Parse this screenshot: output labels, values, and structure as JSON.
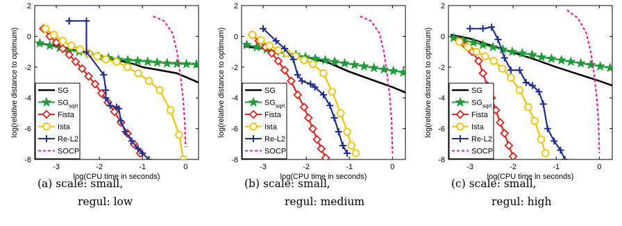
{
  "chart_data": [
    {
      "type": "line",
      "caption_line1": "(a) scale: small,",
      "caption_line2": "regul: low",
      "xlabel": "log(CPU time in seconds)",
      "ylabel": "log(relative distance to optimum)",
      "xlim": [
        -3.5,
        0.3
      ],
      "ylim": [
        -8,
        2
      ],
      "xticks": [
        -3,
        -2,
        -1,
        0
      ],
      "yticks": [
        2,
        0,
        -2,
        -4,
        -6,
        -8
      ],
      "legend_position": "bottom-left",
      "series": [
        {
          "name": "SG",
          "color": "#000000",
          "marker": "none",
          "dash": false,
          "x": [
            -3.45,
            -3.0,
            -2.5,
            -2.0,
            -1.5,
            -1.2,
            -1.0,
            -0.6,
            -0.2,
            0.3
          ],
          "y": [
            -0.45,
            -0.6,
            -0.95,
            -1.3,
            -1.6,
            -1.8,
            -2.0,
            -2.2,
            -2.4,
            -3.0
          ]
        },
        {
          "name": "SG",
          "sub": "sqrt",
          "color": "#1f9b3a",
          "marker": "star",
          "dash": false,
          "x": [
            -3.38,
            -3.15,
            -2.92,
            -2.7,
            -2.47,
            -2.24,
            -2.02,
            -1.79,
            -1.56,
            -1.34,
            -1.11,
            -0.88,
            -0.66,
            -0.43,
            -0.2,
            0.02,
            0.25
          ],
          "y": [
            -0.45,
            -0.6,
            -0.75,
            -0.9,
            -1.0,
            -1.15,
            -1.3,
            -1.4,
            -1.5,
            -1.55,
            -1.6,
            -1.65,
            -1.7,
            -1.75,
            -1.78,
            -1.8,
            -1.82
          ]
        },
        {
          "name": "Fista",
          "color": "#dd2020",
          "marker": "diamond",
          "dash": false,
          "x": [
            -3.3,
            -3.15,
            -3.0,
            -2.85,
            -2.7,
            -2.55,
            -2.4,
            -2.25,
            -2.1,
            -1.95,
            -1.8,
            -1.65,
            -1.5,
            -1.35,
            -1.2,
            -1.05
          ],
          "y": [
            0.5,
            0.0,
            -0.4,
            -0.8,
            -1.2,
            -1.65,
            -2.1,
            -2.6,
            -3.1,
            -3.7,
            -4.3,
            -4.9,
            -5.6,
            -6.3,
            -7.0,
            -7.6
          ]
        },
        {
          "name": "Ista",
          "color": "#f2c200",
          "marker": "circle",
          "dash": false,
          "x": [
            -3.25,
            -3.05,
            -2.85,
            -2.65,
            -2.45,
            -2.25,
            -2.05,
            -1.85,
            -1.6,
            -1.35,
            -1.1,
            -0.85,
            -0.6,
            -0.35,
            -0.15,
            -0.05
          ],
          "y": [
            0.5,
            0.1,
            -0.3,
            -0.6,
            -0.85,
            -1.1,
            -1.3,
            -1.5,
            -1.65,
            -2.0,
            -2.4,
            -2.9,
            -3.5,
            -4.8,
            -6.4,
            -8.0
          ]
        },
        {
          "name": "Re-L2",
          "color": "#1e2d8c",
          "marker": "plus",
          "dash": false,
          "x": [
            -2.7,
            -2.7,
            -2.3,
            -2.3,
            -1.9,
            -1.85,
            -1.85,
            -1.75,
            -1.6,
            -1.55,
            -1.5,
            -1.4,
            -1.25,
            -1.1,
            -1.0,
            -0.85
          ],
          "y": [
            1.0,
            1.0,
            1.0,
            -1.0,
            -2.5,
            -3.5,
            -4.0,
            -4.5,
            -4.6,
            -4.7,
            -5.5,
            -6.2,
            -6.8,
            -7.3,
            -7.6,
            -8.0
          ]
        },
        {
          "name": "SOCP",
          "color": "#e8208c",
          "marker": "none",
          "dash": true,
          "x": [
            -0.75,
            -0.5,
            -0.3,
            -0.2,
            -0.12,
            -0.06,
            -0.02,
            0.0
          ],
          "y": [
            1.3,
            1.0,
            0.2,
            -1.0,
            -2.5,
            -4.0,
            -5.5,
            -7.2
          ]
        }
      ]
    },
    {
      "type": "line",
      "caption_line1": "(b) scale: small,",
      "caption_line2": "regul: medium",
      "xlabel": "log(CPU time in seconds)",
      "ylabel": "log(relative distance to optimum)",
      "xlim": [
        -3.5,
        0.3
      ],
      "ylim": [
        -8,
        2
      ],
      "xticks": [
        -3,
        -2,
        -1,
        0
      ],
      "yticks": [
        2,
        0,
        -2,
        -4,
        -6,
        -8
      ],
      "legend_position": "bottom-left",
      "series": [
        {
          "name": "SG",
          "color": "#000000",
          "marker": "none",
          "dash": false,
          "x": [
            -3.45,
            -3.0,
            -2.5,
            -2.0,
            -1.5,
            -1.0,
            -0.5,
            0.0,
            0.3
          ],
          "y": [
            -0.65,
            -0.8,
            -1.1,
            -1.35,
            -1.7,
            -2.3,
            -2.8,
            -3.3,
            -3.65
          ]
        },
        {
          "name": "SG",
          "sub": "sqrt",
          "color": "#1f9b3a",
          "marker": "star",
          "dash": false,
          "x": [
            -3.38,
            -3.15,
            -2.92,
            -2.7,
            -2.47,
            -2.24,
            -2.02,
            -1.79,
            -1.56,
            -1.34,
            -1.11,
            -0.88,
            -0.66,
            -0.43,
            -0.2,
            0.02,
            0.25
          ],
          "y": [
            -0.55,
            -0.7,
            -0.85,
            -1.0,
            -1.1,
            -1.2,
            -1.35,
            -1.45,
            -1.55,
            -1.65,
            -1.75,
            -1.85,
            -1.95,
            -2.05,
            -2.15,
            -2.25,
            -2.35
          ]
        },
        {
          "name": "Fista",
          "color": "#dd2020",
          "marker": "diamond",
          "dash": false,
          "x": [
            -3.25,
            -3.1,
            -2.95,
            -2.8,
            -2.65,
            -2.5,
            -2.35,
            -2.2,
            -2.05,
            -1.95,
            -1.85,
            -1.75,
            -1.65,
            -1.55
          ],
          "y": [
            0.1,
            -0.3,
            -0.7,
            -1.1,
            -1.6,
            -2.2,
            -2.9,
            -3.8,
            -4.6,
            -5.3,
            -6.0,
            -6.7,
            -7.3,
            -7.9
          ]
        },
        {
          "name": "Ista",
          "color": "#f2c200",
          "marker": "circle",
          "dash": false,
          "x": [
            -3.25,
            -3.05,
            -2.85,
            -2.65,
            -2.45,
            -2.25,
            -2.05,
            -1.85,
            -1.6,
            -1.4,
            -1.2,
            -1.05,
            -0.95,
            -0.85
          ],
          "y": [
            0.1,
            -0.25,
            -0.6,
            -0.9,
            -1.1,
            -1.3,
            -1.55,
            -1.8,
            -2.4,
            -3.6,
            -5.0,
            -6.2,
            -7.1,
            -7.6
          ]
        },
        {
          "name": "Re-L2",
          "color": "#1e2d8c",
          "marker": "plus",
          "dash": false,
          "x": [
            -3.0,
            -2.7,
            -2.5,
            -2.3,
            -2.2,
            -2.1,
            -1.9,
            -1.8,
            -1.6,
            -1.45,
            -1.35,
            -1.25,
            -1.15,
            -1.05
          ],
          "y": [
            0.5,
            -0.3,
            -0.8,
            -1.5,
            -2.5,
            -2.9,
            -3.1,
            -3.3,
            -3.8,
            -4.5,
            -5.3,
            -6.2,
            -7.1,
            -7.6
          ]
        },
        {
          "name": "SOCP",
          "color": "#e8208c",
          "marker": "none",
          "dash": true,
          "x": [
            -0.75,
            -0.5,
            -0.3,
            -0.2,
            -0.12,
            -0.06,
            -0.02,
            0.0
          ],
          "y": [
            1.3,
            1.0,
            0.2,
            -1.0,
            -2.5,
            -4.0,
            -5.5,
            -7.6
          ]
        }
      ]
    },
    {
      "type": "line",
      "caption_line1": "(c) scale: small,",
      "caption_line2": "regul: high",
      "xlabel": "log(CPU time in seconds)",
      "ylabel": "log(relative distance to optimum)",
      "xlim": [
        -3.5,
        0.3
      ],
      "ylim": [
        -8,
        2
      ],
      "xticks": [
        -3,
        -2,
        -1,
        0
      ],
      "yticks": [
        2,
        0,
        -2,
        -4,
        -6,
        -8
      ],
      "legend_position": "bottom-left",
      "series": [
        {
          "name": "SG",
          "color": "#000000",
          "marker": "none",
          "dash": false,
          "x": [
            -3.45,
            -3.0,
            -2.5,
            -2.0,
            -1.5,
            -1.0,
            -0.5,
            0.0,
            0.3
          ],
          "y": [
            0.1,
            -0.15,
            -0.6,
            -1.05,
            -1.5,
            -2.0,
            -2.45,
            -2.9,
            -3.2
          ]
        },
        {
          "name": "SG",
          "sub": "sqrt",
          "color": "#1f9b3a",
          "marker": "star",
          "dash": false,
          "x": [
            -3.38,
            -3.15,
            -2.92,
            -2.7,
            -2.47,
            -2.24,
            -2.02,
            -1.79,
            -1.56,
            -1.34,
            -1.11,
            -0.88,
            -0.66,
            -0.43,
            -0.2,
            0.02,
            0.25
          ],
          "y": [
            -0.1,
            -0.25,
            -0.4,
            -0.55,
            -0.7,
            -0.85,
            -1.0,
            -1.1,
            -1.2,
            -1.35,
            -1.45,
            -1.55,
            -1.65,
            -1.75,
            -1.85,
            -1.95,
            -2.05
          ]
        },
        {
          "name": "Fista",
          "color": "#dd2020",
          "marker": "diamond",
          "dash": false,
          "x": [
            -3.25,
            -3.1,
            -2.95,
            -2.8,
            -2.7,
            -2.6,
            -2.5,
            -2.4,
            -2.3,
            -2.2,
            -2.1,
            -2.0
          ],
          "y": [
            -0.3,
            -0.6,
            -1.0,
            -1.6,
            -2.4,
            -3.2,
            -4.0,
            -4.8,
            -5.6,
            -6.3,
            -7.1,
            -7.8
          ]
        },
        {
          "name": "Ista",
          "color": "#f2c200",
          "marker": "circle",
          "dash": false,
          "x": [
            -3.25,
            -3.05,
            -2.85,
            -2.65,
            -2.45,
            -2.25,
            -2.05,
            -1.85,
            -1.65,
            -1.5,
            -1.35,
            -1.25
          ],
          "y": [
            -0.35,
            -0.7,
            -1.0,
            -1.3,
            -1.6,
            -2.1,
            -2.7,
            -3.5,
            -4.6,
            -5.5,
            -6.7,
            -7.6
          ]
        },
        {
          "name": "Re-L2",
          "color": "#1e2d8c",
          "marker": "plus",
          "dash": false,
          "x": [
            -3.0,
            -2.7,
            -2.5,
            -2.35,
            -2.2,
            -2.05,
            -1.85,
            -1.7,
            -1.55,
            -1.4,
            -1.3,
            -1.2,
            -1.05,
            -0.9,
            -0.8
          ],
          "y": [
            0.5,
            0.5,
            0.6,
            -0.2,
            -1.4,
            -2.2,
            -2.2,
            -3.0,
            -3.2,
            -3.6,
            -4.4,
            -6.0,
            -6.8,
            -7.4,
            -8.0
          ]
        },
        {
          "name": "SOCP",
          "color": "#e8208c",
          "marker": "none",
          "dash": true,
          "x": [
            -0.75,
            -0.5,
            -0.3,
            -0.2,
            -0.12,
            -0.06,
            -0.02,
            0.0
          ],
          "y": [
            1.7,
            1.2,
            0.2,
            -1.0,
            -2.5,
            -4.0,
            -5.5,
            -7.6
          ]
        }
      ]
    }
  ]
}
